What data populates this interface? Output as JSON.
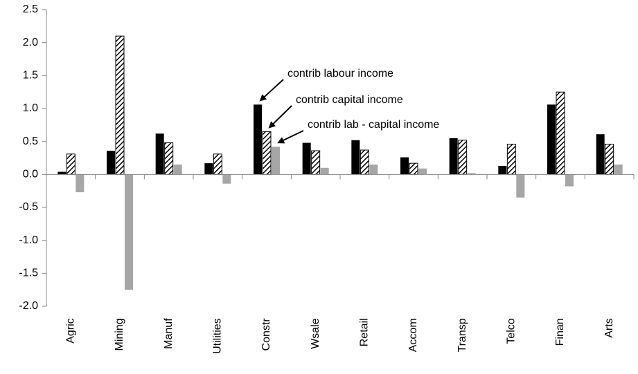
{
  "chart_data": {
    "type": "bar",
    "categories": [
      "Agric",
      "Mining",
      "Manuf",
      "Utilities",
      "Constr",
      "Wsale",
      "Retail",
      "Accom",
      "Transp",
      "Telco",
      "Finan",
      "Arts"
    ],
    "series": [
      {
        "name": "contrib labour income",
        "color": "#000000",
        "values": [
          0.04,
          0.36,
          0.62,
          0.17,
          1.06,
          0.48,
          0.52,
          0.26,
          0.55,
          0.13,
          1.06,
          0.61
        ]
      },
      {
        "name": "contrib capital income",
        "color": "#000000",
        "pattern": "hatch",
        "values": [
          0.31,
          2.1,
          0.48,
          0.31,
          0.65,
          0.36,
          0.37,
          0.17,
          0.52,
          0.46,
          1.25,
          0.46
        ]
      },
      {
        "name": "contrib lab - capital income",
        "color": "#a6a6a6",
        "values": [
          -0.27,
          -1.75,
          0.15,
          -0.14,
          0.42,
          0.1,
          0.15,
          0.09,
          0.02,
          -0.35,
          -0.18,
          0.15
        ]
      }
    ],
    "ylim": [
      -2.0,
      2.5
    ],
    "yticks": [
      {
        "value": -2,
        "label": "-2.0"
      },
      -1.5,
      {
        "value": -1,
        "label": "-1.0"
      },
      -0.5,
      {
        "value": 0,
        "label": "0.0"
      },
      0.5,
      {
        "value": 1,
        "label": "1.0"
      },
      1.5,
      {
        "value": 2,
        "label": "2.0"
      },
      2.5
    ],
    "grid": false
  }
}
